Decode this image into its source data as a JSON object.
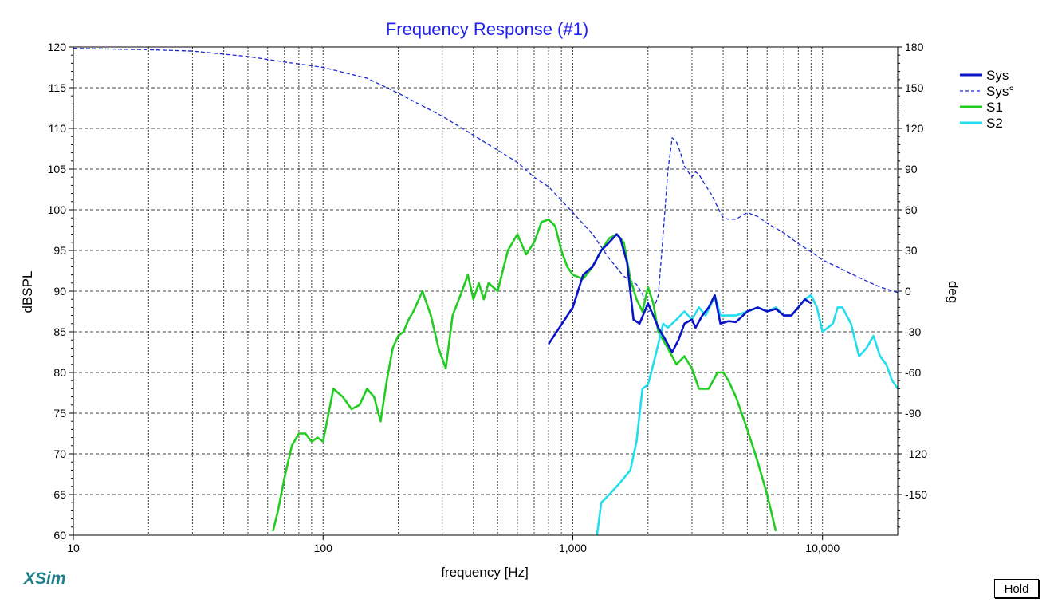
{
  "chart_data": {
    "type": "line",
    "title": "Frequency Response (#1)",
    "title_color": "#2222ee",
    "xlabel": "frequency [Hz]",
    "ylabel": "dBSPL",
    "y2label": "deg",
    "x_scale": "log",
    "xlim": [
      10,
      20000
    ],
    "ylim": [
      60,
      120
    ],
    "y2lim": [
      -180,
      180
    ],
    "grid": true,
    "legend_position": "right",
    "x_tick_labels": [
      {
        "value": 10,
        "label": "10"
      },
      {
        "value": 100,
        "label": "100"
      },
      {
        "value": 1000,
        "label": "1,000"
      },
      {
        "value": 10000,
        "label": "10,000"
      }
    ],
    "y_ticks": [
      60,
      65,
      70,
      75,
      80,
      85,
      90,
      95,
      100,
      105,
      110,
      115,
      120
    ],
    "y2_ticks": [
      -150,
      -120,
      -90,
      -60,
      -30,
      0,
      30,
      60,
      90,
      120,
      150,
      180
    ],
    "series": [
      {
        "name": "Sys",
        "color": "#0a14c8",
        "axis": "left",
        "dash": false,
        "points": [
          [
            800,
            83.5
          ],
          [
            1000,
            88
          ],
          [
            1100,
            92
          ],
          [
            1200,
            93
          ],
          [
            1300,
            95
          ],
          [
            1400,
            96
          ],
          [
            1500,
            97
          ],
          [
            1550,
            96.5
          ],
          [
            1650,
            93.5
          ],
          [
            1750,
            86.5
          ],
          [
            1850,
            86
          ],
          [
            2000,
            88.5
          ],
          [
            2100,
            87
          ],
          [
            2200,
            85.5
          ],
          [
            2350,
            84
          ],
          [
            2500,
            82.5
          ],
          [
            2650,
            84
          ],
          [
            2800,
            86
          ],
          [
            3000,
            86.5
          ],
          [
            3100,
            85.5
          ],
          [
            3300,
            87
          ],
          [
            3500,
            88
          ],
          [
            3700,
            89.5
          ],
          [
            3900,
            86
          ],
          [
            4200,
            86.3
          ],
          [
            4500,
            86.2
          ],
          [
            5000,
            87.5
          ],
          [
            5500,
            88
          ],
          [
            6000,
            87.5
          ],
          [
            6500,
            87.8
          ],
          [
            7000,
            87
          ],
          [
            7500,
            87
          ],
          [
            8000,
            88
          ],
          [
            8500,
            89
          ],
          [
            9000,
            88.5
          ]
        ]
      },
      {
        "name": "Sys°",
        "color": "#1a28d8",
        "axis": "right",
        "dash": true,
        "points": [
          [
            10,
            179
          ],
          [
            20,
            178
          ],
          [
            30,
            177
          ],
          [
            50,
            173
          ],
          [
            70,
            169
          ],
          [
            100,
            165
          ],
          [
            150,
            157
          ],
          [
            200,
            146
          ],
          [
            300,
            129
          ],
          [
            400,
            115
          ],
          [
            500,
            104
          ],
          [
            600,
            95
          ],
          [
            700,
            84
          ],
          [
            800,
            77
          ],
          [
            900,
            67
          ],
          [
            1000,
            58
          ],
          [
            1200,
            42
          ],
          [
            1400,
            24
          ],
          [
            1600,
            11
          ],
          [
            1800,
            5
          ],
          [
            1900,
            -2
          ],
          [
            2000,
            -15
          ],
          [
            2100,
            -14
          ],
          [
            2200,
            -3
          ],
          [
            2300,
            42
          ],
          [
            2400,
            88
          ],
          [
            2500,
            113
          ],
          [
            2600,
            110
          ],
          [
            2700,
            102
          ],
          [
            2800,
            92
          ],
          [
            3000,
            84
          ],
          [
            3100,
            88
          ],
          [
            3200,
            86
          ],
          [
            3400,
            78
          ],
          [
            3600,
            71
          ],
          [
            3800,
            62
          ],
          [
            4000,
            54
          ],
          [
            4200,
            53
          ],
          [
            4500,
            53
          ],
          [
            5000,
            58
          ],
          [
            5500,
            55
          ],
          [
            6000,
            50
          ],
          [
            7000,
            43
          ],
          [
            8000,
            35
          ],
          [
            9000,
            29
          ],
          [
            10000,
            23
          ],
          [
            12000,
            16
          ],
          [
            14000,
            10
          ],
          [
            17000,
            3
          ],
          [
            20000,
            -1
          ]
        ]
      },
      {
        "name": "S1",
        "color": "#22cc22",
        "axis": "left",
        "dash": false,
        "points": [
          [
            63,
            60.5
          ],
          [
            66,
            63
          ],
          [
            70,
            67
          ],
          [
            75,
            71
          ],
          [
            80,
            72.5
          ],
          [
            85,
            72.5
          ],
          [
            90,
            71.5
          ],
          [
            95,
            72
          ],
          [
            100,
            71.5
          ],
          [
            110,
            78
          ],
          [
            120,
            77
          ],
          [
            130,
            75.5
          ],
          [
            140,
            76
          ],
          [
            150,
            78
          ],
          [
            160,
            77
          ],
          [
            170,
            74
          ],
          [
            180,
            79
          ],
          [
            190,
            83
          ],
          [
            200,
            84.5
          ],
          [
            210,
            85
          ],
          [
            220,
            86.5
          ],
          [
            230,
            87.5
          ],
          [
            250,
            90
          ],
          [
            270,
            87
          ],
          [
            290,
            83
          ],
          [
            310,
            80.5
          ],
          [
            330,
            87
          ],
          [
            360,
            90
          ],
          [
            380,
            92
          ],
          [
            400,
            89
          ],
          [
            420,
            91
          ],
          [
            440,
            89
          ],
          [
            460,
            91
          ],
          [
            500,
            90
          ],
          [
            550,
            95
          ],
          [
            600,
            97
          ],
          [
            650,
            94.5
          ],
          [
            700,
            96
          ],
          [
            750,
            98.5
          ],
          [
            800,
            98.8
          ],
          [
            850,
            98
          ],
          [
            900,
            95
          ],
          [
            950,
            93
          ],
          [
            1000,
            92
          ],
          [
            1100,
            91.5
          ],
          [
            1200,
            93
          ],
          [
            1300,
            95
          ],
          [
            1400,
            96.5
          ],
          [
            1500,
            97
          ],
          [
            1600,
            96
          ],
          [
            1700,
            91.5
          ],
          [
            1800,
            89
          ],
          [
            1900,
            87.5
          ],
          [
            2000,
            90.5
          ],
          [
            2100,
            88.5
          ],
          [
            2200,
            85
          ],
          [
            2400,
            83
          ],
          [
            2600,
            81
          ],
          [
            2800,
            82
          ],
          [
            3000,
            80.5
          ],
          [
            3200,
            78
          ],
          [
            3500,
            78
          ],
          [
            3800,
            80
          ],
          [
            4000,
            80
          ],
          [
            4200,
            79
          ],
          [
            4500,
            77
          ],
          [
            5000,
            73
          ],
          [
            5500,
            69
          ],
          [
            6000,
            65
          ],
          [
            6500,
            60.5
          ]
        ]
      },
      {
        "name": "S2",
        "color": "#22dded",
        "axis": "left",
        "dash": false,
        "points": [
          [
            1250,
            60
          ],
          [
            1300,
            64
          ],
          [
            1400,
            65
          ],
          [
            1500,
            66
          ],
          [
            1600,
            67
          ],
          [
            1700,
            68
          ],
          [
            1800,
            71.5
          ],
          [
            1900,
            78
          ],
          [
            2000,
            78.5
          ],
          [
            2100,
            81
          ],
          [
            2200,
            83.5
          ],
          [
            2300,
            86
          ],
          [
            2400,
            85.5
          ],
          [
            2600,
            86.5
          ],
          [
            2800,
            87.5
          ],
          [
            3000,
            86.5
          ],
          [
            3200,
            88
          ],
          [
            3400,
            87
          ],
          [
            3600,
            88.5
          ],
          [
            3700,
            89.5
          ],
          [
            3900,
            87
          ],
          [
            4200,
            87
          ],
          [
            4500,
            87
          ],
          [
            5000,
            87.5
          ],
          [
            5500,
            88
          ],
          [
            6000,
            87.5
          ],
          [
            6500,
            88
          ],
          [
            7000,
            87
          ],
          [
            7500,
            87
          ],
          [
            8000,
            88
          ],
          [
            8500,
            89
          ],
          [
            9000,
            89.5
          ],
          [
            9500,
            88
          ],
          [
            10000,
            85
          ],
          [
            11000,
            86
          ],
          [
            11500,
            88
          ],
          [
            12000,
            88
          ],
          [
            13000,
            86
          ],
          [
            14000,
            82
          ],
          [
            15000,
            83
          ],
          [
            16000,
            84.5
          ],
          [
            17000,
            82
          ],
          [
            18000,
            81
          ],
          [
            19000,
            79
          ],
          [
            20000,
            78
          ]
        ]
      }
    ]
  },
  "branding": {
    "logo_text": "XSim"
  },
  "controls": {
    "hold_label": "Hold"
  }
}
